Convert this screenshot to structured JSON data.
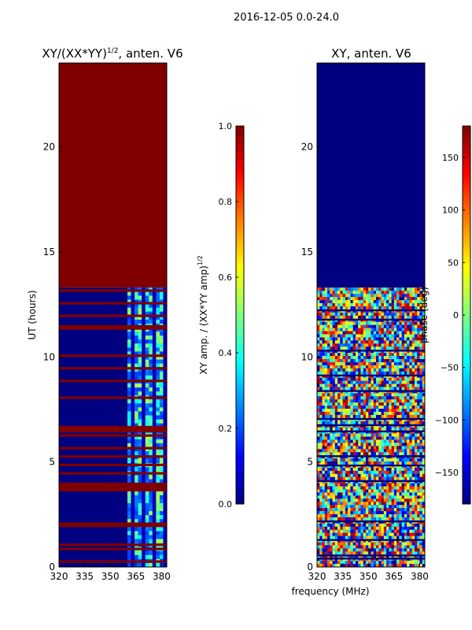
{
  "suptitle": "2016-12-05 0.0-24.0",
  "shared_xlabel": "frequency (MHz)",
  "chart_data": [
    {
      "type": "heatmap",
      "title_main": "XY/(XX*YY)",
      "title_sup": "1/2",
      "title_rest": ", anten. V6",
      "ylabel": "UT (hours)",
      "x_ticks": [
        320,
        335,
        350,
        365,
        380
      ],
      "y_ticks": [
        0,
        5,
        10,
        15,
        20
      ],
      "xlim": [
        320,
        383
      ],
      "ylim": [
        0,
        24
      ],
      "colorbar": {
        "label_main": "XY amp. / (XX*YY amp)",
        "label_sup": "1/2",
        "ticks": [
          "0.0",
          "0.2",
          "0.4",
          "0.6",
          "0.8",
          "1.0"
        ],
        "range": [
          0,
          1
        ],
        "colormap": "jet"
      },
      "regions": [
        {
          "y0": 13.3,
          "y1": 24,
          "value": 1.0
        },
        {
          "y0": 0,
          "y1": 13.3,
          "value": 0.0
        }
      ],
      "bright_band_x": [
        360,
        383
      ],
      "flag_rows_y": [
        0.2,
        0.8,
        1.0,
        1.9,
        2.0,
        3.6,
        3.7,
        3.8,
        3.9,
        4.4,
        4.8,
        5.2,
        5.6,
        6.2,
        6.4,
        6.5,
        6.6,
        8.0,
        8.8,
        9.4,
        10.0,
        11.3,
        11.4,
        11.9,
        12.5,
        13.1
      ]
    },
    {
      "type": "heatmap",
      "title_main": "XY, anten. V6",
      "ylabel": "",
      "x_ticks": [
        320,
        335,
        350,
        365,
        380
      ],
      "y_ticks": [
        0,
        5,
        10,
        15,
        20
      ],
      "xlim": [
        320,
        383
      ],
      "ylim": [
        0,
        24
      ],
      "colorbar": {
        "label_main": "phase (deg)",
        "ticks": [
          "150",
          "100",
          "50",
          "0",
          "−50",
          "−100",
          "−150"
        ],
        "range": [
          -180,
          180
        ],
        "colormap": "jet"
      },
      "regions": [
        {
          "y0": 13.3,
          "y1": 24,
          "value": -180
        },
        {
          "y0": 0,
          "y1": 13.3,
          "value": "random"
        }
      ]
    }
  ],
  "colors": {
    "jet_low": "#00007f",
    "jet_high": "#7f0000"
  }
}
